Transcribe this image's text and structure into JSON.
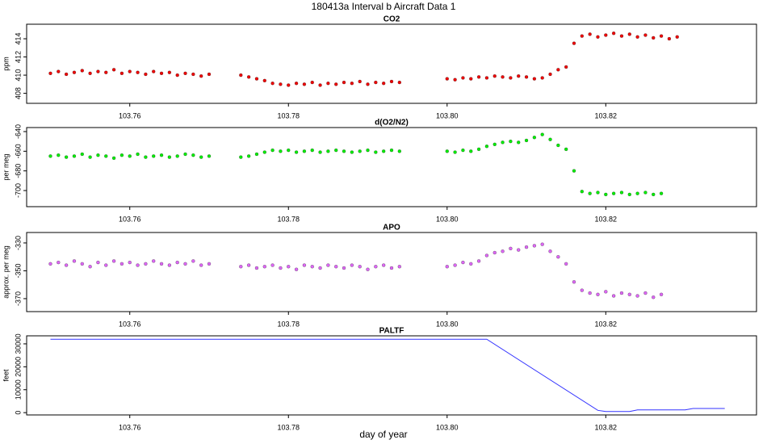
{
  "title": "180413a   Interval b Aircraft Data 1",
  "x_label": "day of year",
  "chart_data": [
    {
      "type": "scatter",
      "title": "CO2",
      "y_label": "ppm",
      "color": "#ee0000",
      "x": [
        103.75,
        103.751,
        103.752,
        103.753,
        103.754,
        103.755,
        103.756,
        103.757,
        103.758,
        103.759,
        103.76,
        103.761,
        103.762,
        103.763,
        103.764,
        103.765,
        103.766,
        103.767,
        103.768,
        103.769,
        103.77,
        103.771,
        103.772,
        103.773,
        103.774,
        103.775,
        103.776,
        103.777,
        103.778,
        103.779,
        103.78,
        103.781,
        103.782,
        103.783,
        103.784,
        103.785,
        103.786,
        103.787,
        103.788,
        103.789,
        103.79,
        103.791,
        103.792,
        103.793,
        103.794,
        103.795,
        103.796,
        103.797,
        103.798,
        103.799,
        103.8,
        103.801,
        103.802,
        103.803,
        103.804,
        103.805,
        103.806,
        103.807,
        103.808,
        103.809,
        103.81,
        103.811,
        103.812,
        103.813,
        103.814,
        103.815,
        103.816,
        103.817,
        103.818,
        103.819,
        103.82,
        103.821,
        103.822,
        103.823,
        103.824,
        103.825,
        103.826,
        103.827,
        103.828,
        103.829
      ],
      "values": [
        410.2,
        410.4,
        410.1,
        410.3,
        410.5,
        410.2,
        410.4,
        410.3,
        410.6,
        410.2,
        410.4,
        410.3,
        410.1,
        410.4,
        410.2,
        410.3,
        410.0,
        410.2,
        410.1,
        409.9,
        410.1,
        null,
        null,
        null,
        410.0,
        409.8,
        409.6,
        409.4,
        409.1,
        409.0,
        408.9,
        409.1,
        409.0,
        409.2,
        408.9,
        409.1,
        409.0,
        409.2,
        409.1,
        409.3,
        409.0,
        409.2,
        409.1,
        409.3,
        409.2,
        null,
        null,
        null,
        null,
        null,
        409.6,
        409.5,
        409.7,
        409.6,
        409.8,
        409.7,
        409.9,
        409.8,
        409.7,
        409.9,
        409.8,
        409.6,
        409.7,
        410.1,
        410.6,
        410.9,
        413.5,
        414.3,
        414.5,
        414.2,
        414.4,
        414.6,
        414.3,
        414.5,
        414.2,
        414.4,
        414.1,
        414.3,
        414.0,
        414.2
      ],
      "xlim": [
        103.747,
        103.839
      ],
      "xticks": [
        103.76,
        103.78,
        {
          "value": 103.8,
          "label": "103.80"
        },
        103.82
      ],
      "ylim": [
        406.9,
        415.6
      ],
      "yticks": [
        408,
        410,
        412,
        414
      ]
    },
    {
      "type": "scatter",
      "title": "d(O2/N2)",
      "y_label": "per meg",
      "color": "#00ee00",
      "x": [
        103.75,
        103.751,
        103.752,
        103.753,
        103.754,
        103.755,
        103.756,
        103.757,
        103.758,
        103.759,
        103.76,
        103.761,
        103.762,
        103.763,
        103.764,
        103.765,
        103.766,
        103.767,
        103.768,
        103.769,
        103.77,
        103.771,
        103.772,
        103.773,
        103.774,
        103.775,
        103.776,
        103.777,
        103.778,
        103.779,
        103.78,
        103.781,
        103.782,
        103.783,
        103.784,
        103.785,
        103.786,
        103.787,
        103.788,
        103.789,
        103.79,
        103.791,
        103.792,
        103.793,
        103.794,
        103.795,
        103.796,
        103.797,
        103.798,
        103.799,
        103.8,
        103.801,
        103.802,
        103.803,
        103.804,
        103.805,
        103.806,
        103.807,
        103.808,
        103.809,
        103.81,
        103.811,
        103.812,
        103.813,
        103.814,
        103.815,
        103.816,
        103.817,
        103.818,
        103.819,
        103.82,
        103.821,
        103.822,
        103.823,
        103.824,
        103.825,
        103.826,
        103.827,
        103.828,
        103.829
      ],
      "values": [
        -665,
        -664,
        -666,
        -665,
        -663,
        -666,
        -664,
        -665,
        -667,
        -664,
        -665,
        -663,
        -666,
        -665,
        -664,
        -666,
        -665,
        -663,
        -664,
        -666,
        -665,
        null,
        null,
        null,
        -666,
        -665,
        -663,
        -661,
        -659,
        -660,
        -659,
        -661,
        -660,
        -659,
        -661,
        -660,
        -659,
        -660,
        -661,
        -660,
        -659,
        -661,
        -660,
        -659,
        -660,
        null,
        null,
        null,
        null,
        null,
        -660,
        -661,
        -659,
        -660,
        -658,
        -655,
        -653,
        -651,
        -650,
        -651,
        -649,
        -646,
        -643,
        -648,
        -654,
        -658,
        -680,
        -701,
        -703,
        -702,
        -704,
        -703,
        -702,
        -704,
        -703,
        -702,
        -704,
        -703,
        null,
        null
      ],
      "xlim": [
        103.747,
        103.839
      ],
      "xticks": [
        103.76,
        103.78,
        {
          "value": 103.8,
          "label": "103.80"
        },
        103.82
      ],
      "ylim": [
        -716.4,
        -635.9
      ],
      "yticks": [
        -700,
        -680,
        -660,
        -640
      ]
    },
    {
      "type": "scatter",
      "title": "APO",
      "y_label": "approx. per meg",
      "color": "#dd66f5",
      "x": [
        103.75,
        103.751,
        103.752,
        103.753,
        103.754,
        103.755,
        103.756,
        103.757,
        103.758,
        103.759,
        103.76,
        103.761,
        103.762,
        103.763,
        103.764,
        103.765,
        103.766,
        103.767,
        103.768,
        103.769,
        103.77,
        103.771,
        103.772,
        103.773,
        103.774,
        103.775,
        103.776,
        103.777,
        103.778,
        103.779,
        103.78,
        103.781,
        103.782,
        103.783,
        103.784,
        103.785,
        103.786,
        103.787,
        103.788,
        103.789,
        103.79,
        103.791,
        103.792,
        103.793,
        103.794,
        103.795,
        103.796,
        103.797,
        103.798,
        103.799,
        103.8,
        103.801,
        103.802,
        103.803,
        103.804,
        103.805,
        103.806,
        103.807,
        103.808,
        103.809,
        103.81,
        103.811,
        103.812,
        103.813,
        103.814,
        103.815,
        103.816,
        103.817,
        103.818,
        103.819,
        103.82,
        103.821,
        103.822,
        103.823,
        103.824,
        103.825,
        103.826,
        103.827,
        103.828,
        103.829
      ],
      "values": [
        -345,
        -344,
        -346,
        -343,
        -345,
        -347,
        -344,
        -346,
        -343,
        -345,
        -344,
        -346,
        -345,
        -343,
        -345,
        -346,
        -344,
        -345,
        -343,
        -346,
        -345,
        null,
        null,
        null,
        -347,
        -346,
        -348,
        -347,
        -346,
        -348,
        -347,
        -349,
        -346,
        -347,
        -348,
        -346,
        -347,
        -348,
        -346,
        -347,
        -349,
        -347,
        -346,
        -348,
        -347,
        null,
        null,
        null,
        null,
        null,
        -347,
        -346,
        -344,
        -345,
        -343,
        -339,
        -337,
        -336,
        -334,
        -335,
        -333,
        -332,
        -331,
        -336,
        -340,
        -345,
        -358,
        -364,
        -366,
        -367,
        -365,
        -368,
        -366,
        -367,
        -368,
        -366,
        -369,
        -367,
        null,
        null
      ],
      "xlim": [
        103.747,
        103.839
      ],
      "xticks": [
        103.76,
        103.78,
        {
          "value": 103.8,
          "label": "103.80"
        },
        103.82
      ],
      "ylim": [
        -379.3,
        -322.5
      ],
      "yticks": [
        -370,
        -350,
        -330
      ]
    },
    {
      "type": "line",
      "title": "PALTF",
      "y_label": "feet",
      "color": "#3333ff",
      "x": [
        103.75,
        103.805,
        103.819,
        103.82,
        103.823,
        103.824,
        103.83,
        103.831,
        103.835
      ],
      "values": [
        32000,
        32000,
        1000,
        500,
        500,
        1200,
        1200,
        1800,
        1800
      ],
      "xlim": [
        103.747,
        103.839
      ],
      "xticks": [
        103.76,
        103.78,
        {
          "value": 103.8,
          "label": "103.80"
        },
        103.82
      ],
      "ylim": [
        -1000,
        33500
      ],
      "yticks": [
        0,
        10000,
        20000,
        30000
      ]
    }
  ]
}
